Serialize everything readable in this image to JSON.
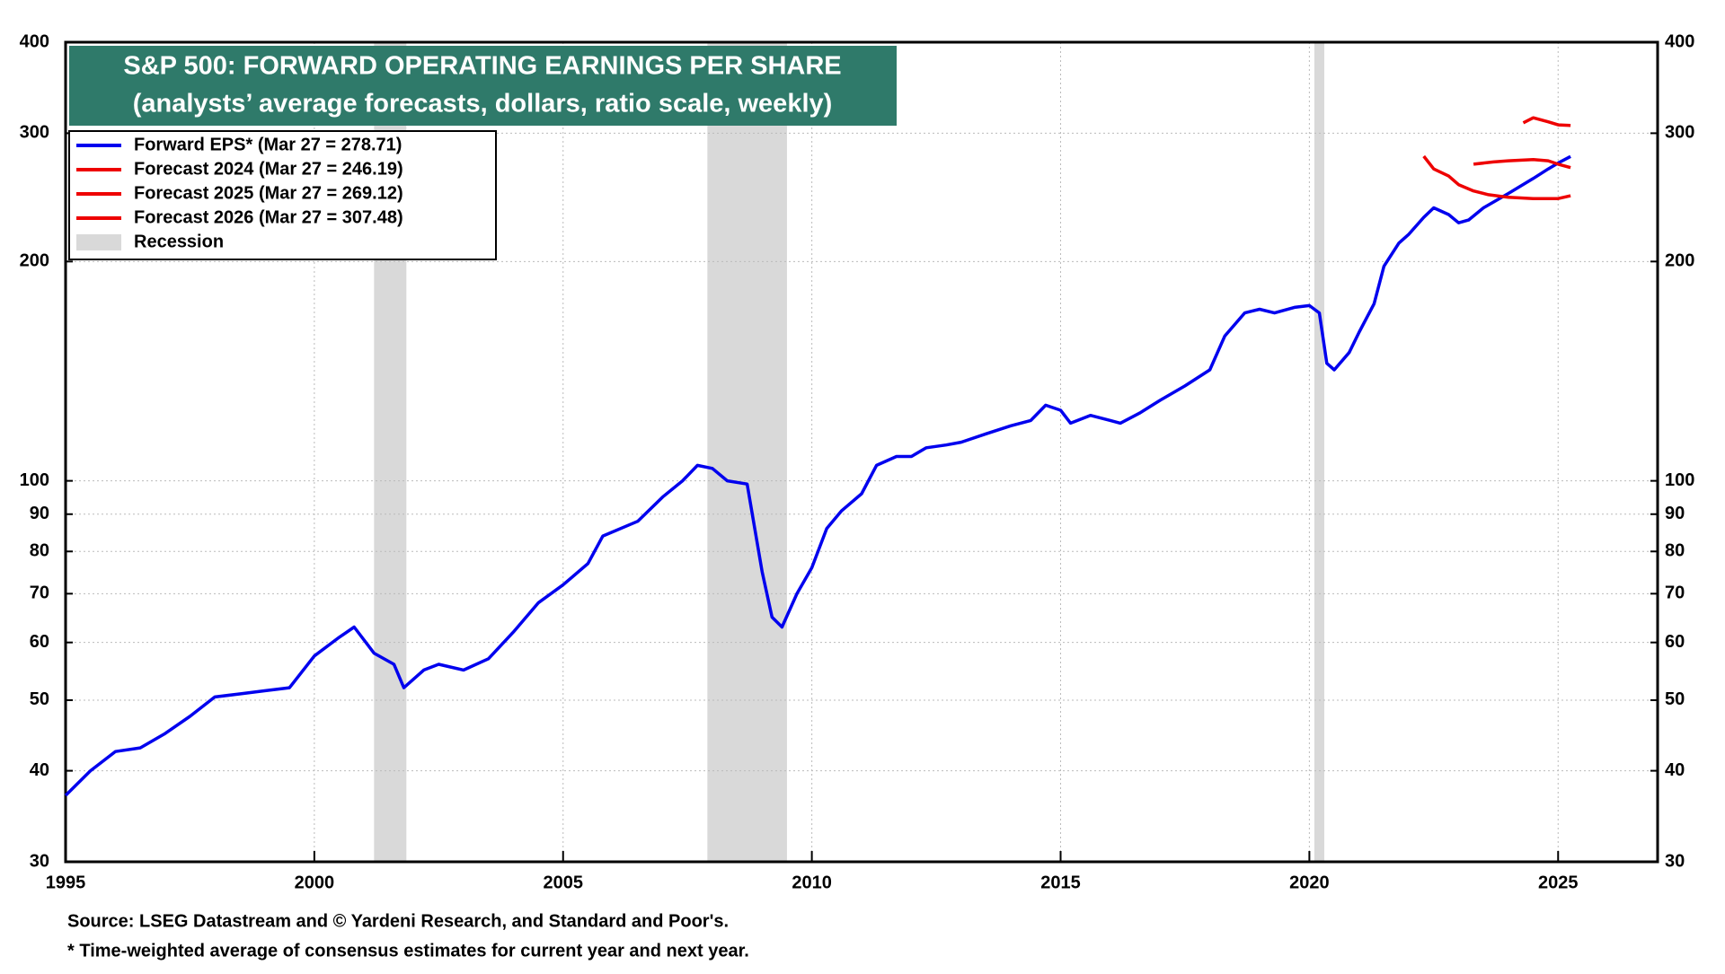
{
  "chart_data": {
    "type": "line",
    "title": "S&P 500: FORWARD OPERATING EARNINGS PER SHARE",
    "subtitle": "(analysts’ average forecasts, dollars, ratio scale, weekly)",
    "log_y": true,
    "grid": true,
    "legend": "top-left",
    "xlim": [
      1995,
      2027
    ],
    "xticks": [
      1995,
      2000,
      2005,
      2010,
      2015,
      2020,
      2025
    ],
    "ylim": [
      30,
      400
    ],
    "yticks": [
      30,
      40,
      50,
      60,
      70,
      80,
      90,
      100,
      200,
      300,
      400
    ],
    "y2lim": [
      30,
      400
    ],
    "y2ticks": [
      30,
      40,
      50,
      60,
      70,
      80,
      90,
      100,
      200,
      300,
      400
    ],
    "recession": {
      "label": "Recession",
      "color": "#d9d9d9",
      "spans": [
        [
          2001.2,
          2001.85
        ],
        [
          2007.9,
          2009.5
        ],
        [
          2020.1,
          2020.3
        ]
      ]
    },
    "series": [
      {
        "name": "Forward EPS* (Mar 27 = 278.71)",
        "color": "#0000ee",
        "x": [
          1995,
          1995.5,
          1996,
          1996.5,
          1997,
          1997.5,
          1998,
          1998.5,
          1999,
          1999.5,
          2000,
          2000.5,
          2000.8,
          2001.2,
          2001.6,
          2001.8,
          2002.2,
          2002.5,
          2003,
          2003.5,
          2004,
          2004.5,
          2005,
          2005.5,
          2005.8,
          2006.5,
          2007,
          2007.4,
          2007.7,
          2008,
          2008.3,
          2008.7,
          2009,
          2009.2,
          2009.4,
          2009.7,
          2010,
          2010.3,
          2010.6,
          2011,
          2011.3,
          2011.7,
          2012,
          2012.3,
          2012.7,
          2013,
          2013.5,
          2014,
          2014.4,
          2014.7,
          2015,
          2015.2,
          2015.6,
          2016,
          2016.2,
          2016.6,
          2017,
          2017.5,
          2018,
          2018.3,
          2018.7,
          2019,
          2019.3,
          2019.7,
          2020,
          2020.2,
          2020.35,
          2020.5,
          2020.8,
          2021,
          2021.3,
          2021.5,
          2021.8,
          2022,
          2022.3,
          2022.5,
          2022.8,
          2023,
          2023.2,
          2023.5,
          2024,
          2024.5,
          2024.8,
          2025,
          2025.25
        ],
        "values": [
          37,
          40,
          42.5,
          43,
          45,
          47.5,
          50.5,
          51,
          51.5,
          52,
          57.5,
          61,
          63,
          58,
          56,
          52,
          55,
          56,
          55,
          57,
          62,
          68,
          72,
          77,
          84,
          88,
          95,
          100,
          105,
          104,
          100,
          99,
          75,
          65,
          63,
          70,
          76,
          86,
          91,
          96,
          105,
          108,
          108,
          111,
          112,
          113,
          116,
          119,
          121,
          127,
          125,
          120,
          123,
          121,
          120,
          124,
          129,
          135,
          142,
          158,
          170,
          172,
          170,
          173,
          174,
          170,
          145,
          142,
          150,
          160,
          175,
          197,
          212,
          218,
          230,
          237,
          232,
          226,
          228,
          237,
          248,
          260,
          268,
          273,
          278.71
        ]
      },
      {
        "name": "Forecast 2024 (Mar 27 = 246.19)",
        "color": "#ee0000",
        "x": [
          2022.3,
          2022.5,
          2022.8,
          2023,
          2023.3,
          2023.6,
          2024,
          2024.5,
          2025,
          2025.25
        ],
        "values": [
          279,
          268,
          262,
          255,
          250,
          247,
          245,
          244,
          244,
          246.19
        ]
      },
      {
        "name": "Forecast 2025 (Mar 27 = 269.12)",
        "color": "#ee0000",
        "x": [
          2023.3,
          2023.7,
          2024,
          2024.5,
          2024.8,
          2025,
          2025.25
        ],
        "values": [
          272,
          274,
          275,
          276,
          275,
          272,
          269.12
        ]
      },
      {
        "name": "Forecast 2026 (Mar 27 = 307.48)",
        "color": "#ee0000",
        "x": [
          2024.3,
          2024.5,
          2024.8,
          2025,
          2025.25
        ],
        "values": [
          310,
          315,
          311,
          308,
          307.48
        ]
      }
    ],
    "source": "Source: LSEG Datastream and © Yardeni Research, and Standard and Poor's.",
    "note": "* Time-weighted average of consensus estimates for current year and next year."
  }
}
